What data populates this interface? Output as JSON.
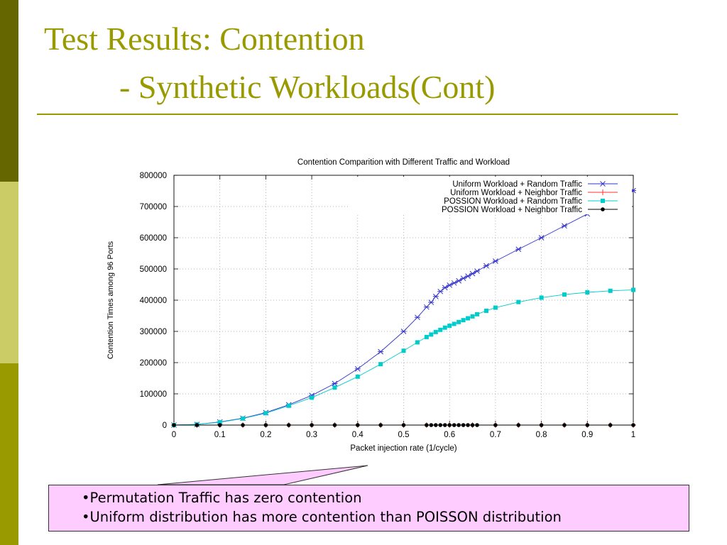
{
  "slide": {
    "title_line1": "Test Results: Contention",
    "title_line2": "- Synthetic Workloads(Cont)",
    "colors": {
      "title": "#999900",
      "rule": "#999900",
      "sidebar_dark": "#666600",
      "sidebar_light": "#cccc66",
      "sidebar_mid": "#999900",
      "callout_bg": "#ffccff"
    }
  },
  "callout": {
    "bullets": [
      "Permutation Traffic has zero contention",
      "Uniform distribution has more contention than POISSON distribution"
    ]
  },
  "chart_data": {
    "type": "line",
    "title": "Contention Comparition with Different Traffic and Workload",
    "xlabel": "Packet injection rate (1/cycle)",
    "ylabel": "Contention Times among 96 Ports",
    "xlim": [
      0,
      1
    ],
    "ylim": [
      0,
      800000
    ],
    "xticks": [
      "0",
      "0.1",
      "0.2",
      "0.3",
      "0.4",
      "0.5",
      "0.6",
      "0.7",
      "0.8",
      "0.9",
      "1"
    ],
    "yticks": [
      "0",
      "100000",
      "200000",
      "300000",
      "400000",
      "500000",
      "600000",
      "700000",
      "800000"
    ],
    "grid": true,
    "legend_position": "top-right",
    "series": [
      {
        "name": "Uniform Workload + Random Traffic",
        "color": "#3333cc",
        "marker": "star",
        "x": [
          0,
          0.05,
          0.1,
          0.15,
          0.2,
          0.25,
          0.3,
          0.35,
          0.4,
          0.45,
          0.5,
          0.53,
          0.55,
          0.56,
          0.57,
          0.58,
          0.59,
          0.6,
          0.61,
          0.62,
          0.63,
          0.64,
          0.65,
          0.66,
          0.68,
          0.7,
          0.75,
          0.8,
          0.85,
          0.9,
          0.95,
          1.0
        ],
        "y": [
          0,
          2000,
          10000,
          22000,
          40000,
          65000,
          95000,
          133000,
          180000,
          235000,
          300000,
          345000,
          378000,
          393000,
          412000,
          428000,
          440000,
          448000,
          455000,
          462000,
          470000,
          477000,
          485000,
          493000,
          510000,
          525000,
          563000,
          600000,
          638000,
          676000,
          713000,
          751000
        ]
      },
      {
        "name": "Uniform Workload + Neighbor Traffic",
        "color": "#ff3333",
        "marker": "plus",
        "x": [
          0,
          0.05,
          0.1,
          0.15,
          0.2,
          0.25,
          0.3,
          0.35,
          0.4,
          0.45,
          0.5,
          0.55,
          0.6,
          0.65,
          0.7,
          0.75,
          0.8,
          0.85,
          0.9,
          0.95,
          1.0
        ],
        "y": [
          0,
          0,
          0,
          0,
          0,
          0,
          0,
          0,
          0,
          0,
          0,
          0,
          0,
          0,
          0,
          0,
          0,
          0,
          0,
          0,
          0
        ]
      },
      {
        "name": "POSSION Workload +  Random Traffic",
        "color": "#00cccc",
        "marker": "square",
        "x": [
          0,
          0.05,
          0.1,
          0.15,
          0.2,
          0.25,
          0.3,
          0.35,
          0.4,
          0.45,
          0.5,
          0.53,
          0.55,
          0.56,
          0.57,
          0.58,
          0.59,
          0.6,
          0.61,
          0.62,
          0.63,
          0.64,
          0.65,
          0.66,
          0.68,
          0.7,
          0.75,
          0.8,
          0.85,
          0.9,
          0.95,
          1.0
        ],
        "y": [
          0,
          2000,
          9000,
          21000,
          38000,
          62000,
          88000,
          120000,
          155000,
          195000,
          238000,
          265000,
          282000,
          290000,
          298000,
          305000,
          312000,
          318000,
          324000,
          330000,
          336000,
          342000,
          348000,
          355000,
          366000,
          376000,
          394000,
          408000,
          418000,
          425000,
          430000,
          433000
        ]
      },
      {
        "name": "POSSION Workload +  Neighbor Traffic",
        "color": "#000000",
        "marker": "circle",
        "x": [
          0,
          0.05,
          0.1,
          0.15,
          0.2,
          0.25,
          0.3,
          0.35,
          0.4,
          0.45,
          0.5,
          0.55,
          0.56,
          0.57,
          0.58,
          0.59,
          0.6,
          0.61,
          0.62,
          0.63,
          0.64,
          0.65,
          0.66,
          0.7,
          0.75,
          0.8,
          0.85,
          0.9,
          0.95,
          1.0
        ],
        "y": [
          0,
          0,
          0,
          0,
          0,
          0,
          0,
          0,
          0,
          0,
          0,
          0,
          0,
          0,
          0,
          0,
          0,
          0,
          0,
          0,
          0,
          0,
          0,
          0,
          0,
          0,
          0,
          0,
          0,
          0
        ]
      }
    ]
  }
}
